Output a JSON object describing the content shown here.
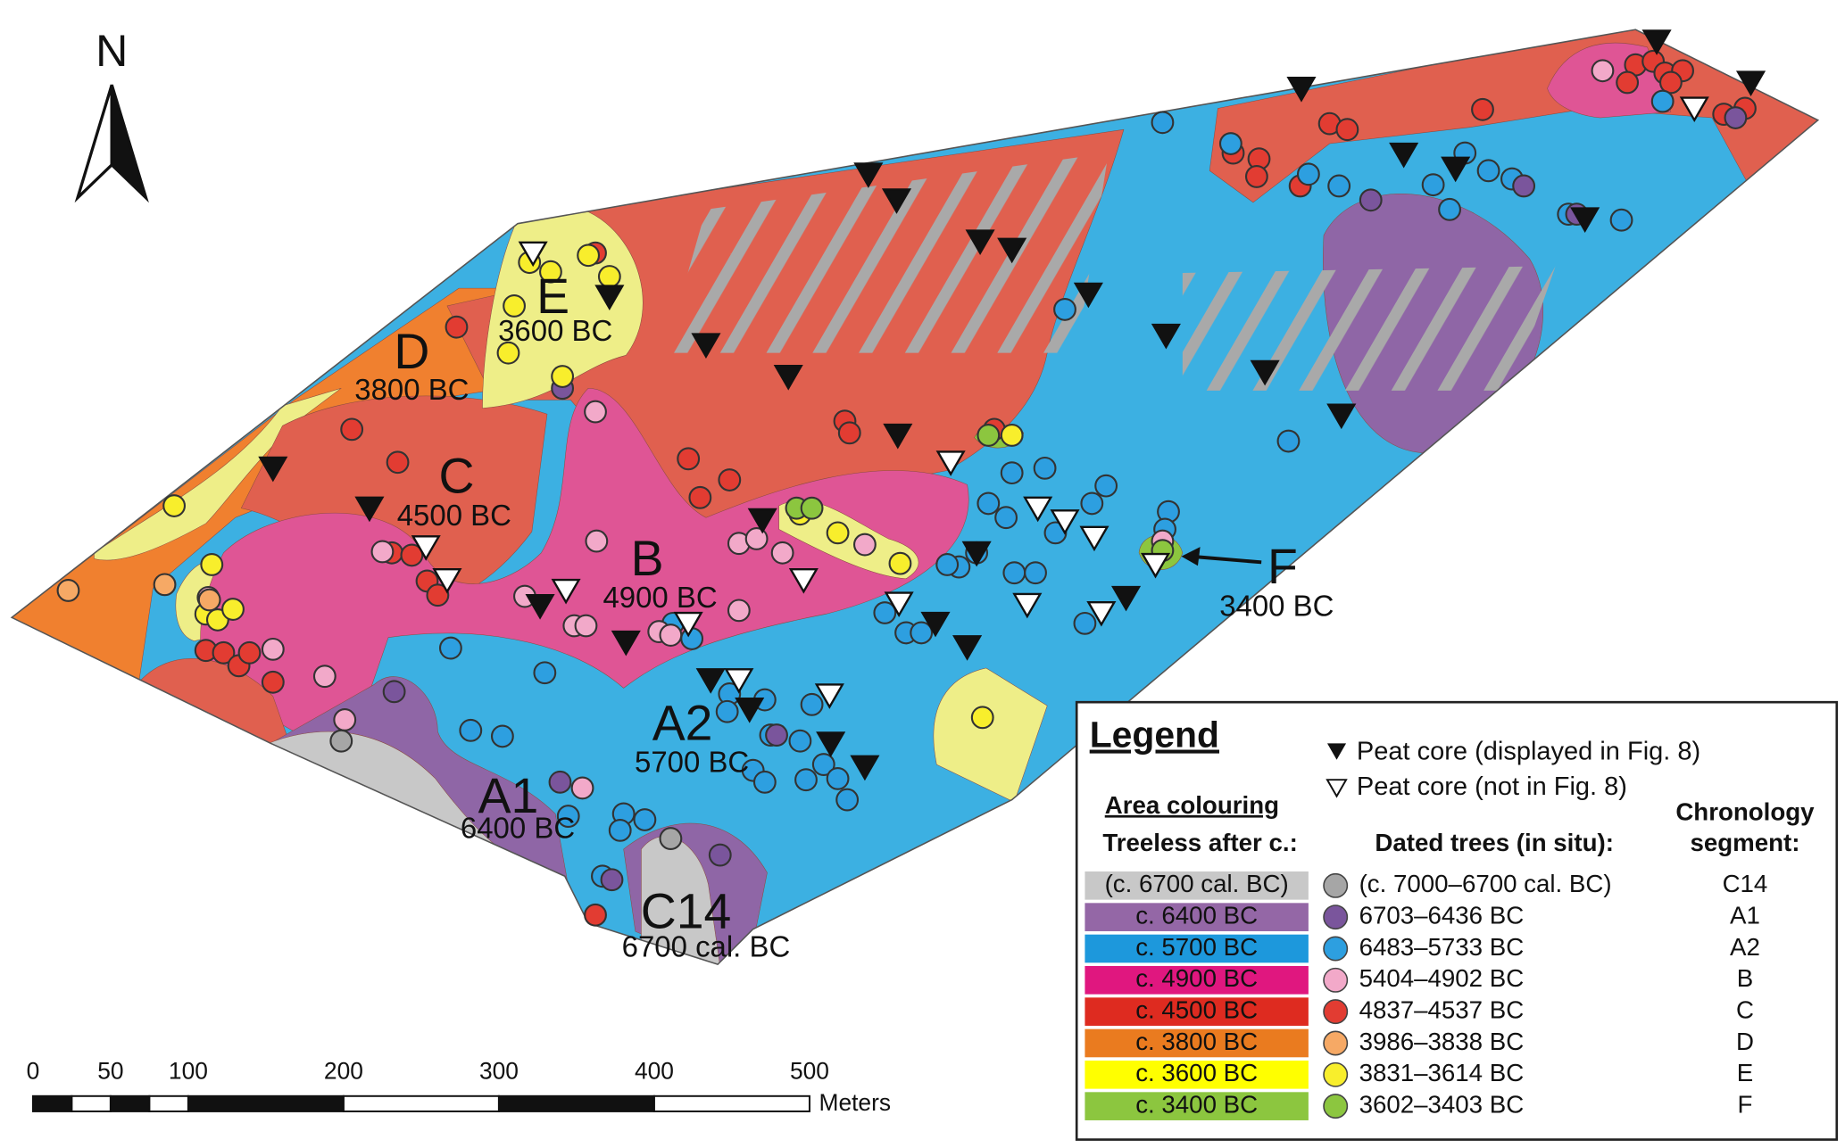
{
  "north": "N",
  "zones": [
    {
      "name": "E",
      "date": "3600 BC"
    },
    {
      "name": "D",
      "date": "3800 BC"
    },
    {
      "name": "C",
      "date": "4500 BC"
    },
    {
      "name": "B",
      "date": "4900 BC"
    },
    {
      "name": "A2",
      "date": "5700 BC"
    },
    {
      "name": "A1",
      "date": "6400 BC"
    },
    {
      "name": "C14",
      "date": "6700 cal. BC"
    },
    {
      "name": "F",
      "date": "3400 BC"
    }
  ],
  "scale": {
    "ticks": [
      0,
      50,
      100,
      200,
      300,
      400,
      500
    ],
    "unit": "Meters"
  },
  "legend": {
    "title": "Legend",
    "peat_core_displayed": "Peat core (displayed in Fig. 8)",
    "peat_core_not_displayed": "Peat core (not in Fig. 8)",
    "area_heading": "Area colouring",
    "treeless_heading": "Treeless after c.:",
    "trees_heading": "Dated trees (in situ):",
    "segment_heading": [
      "Chronology",
      "segment:"
    ],
    "rows": [
      {
        "area": "(c. 6700 cal. BC)",
        "area_color": "#c8c8c8",
        "trees": "(c. 7000–6700 cal. BC)",
        "dot_color": "#a6a6a6",
        "segment": "C14"
      },
      {
        "area": "c. 6400 BC",
        "area_color": "#9467a6",
        "trees": "6703–6436  BC",
        "dot_color": "#7a559c",
        "segment": "A1"
      },
      {
        "area": "c. 5700 BC",
        "area_color": "#1d98dc",
        "trees": "6483–5733  BC",
        "dot_color": "#2d9fe0",
        "segment": "A2"
      },
      {
        "area": "c. 4900 BC",
        "area_color": "#e0177f",
        "trees": "5404–4902  BC",
        "dot_color": "#f2a9c9",
        "segment": "B"
      },
      {
        "area": "c. 4500 BC",
        "area_color": "#de2b20",
        "trees": "4837–4537  BC",
        "dot_color": "#e23c32",
        "segment": "C"
      },
      {
        "area": "c. 3800 BC",
        "area_color": "#ea7b1f",
        "trees": "3986–3838  BC",
        "dot_color": "#f6a965",
        "segment": "D"
      },
      {
        "area": "c. 3600 BC",
        "area_color": "#ffff00",
        "trees": "3831–3614  BC",
        "dot_color": "#f8ee2c",
        "segment": "E"
      },
      {
        "area": "c. 3400 BC",
        "area_color": "#8cc63f",
        "trees": "3602–3403  BC",
        "dot_color": "#8cc63f",
        "segment": "F"
      }
    ]
  }
}
